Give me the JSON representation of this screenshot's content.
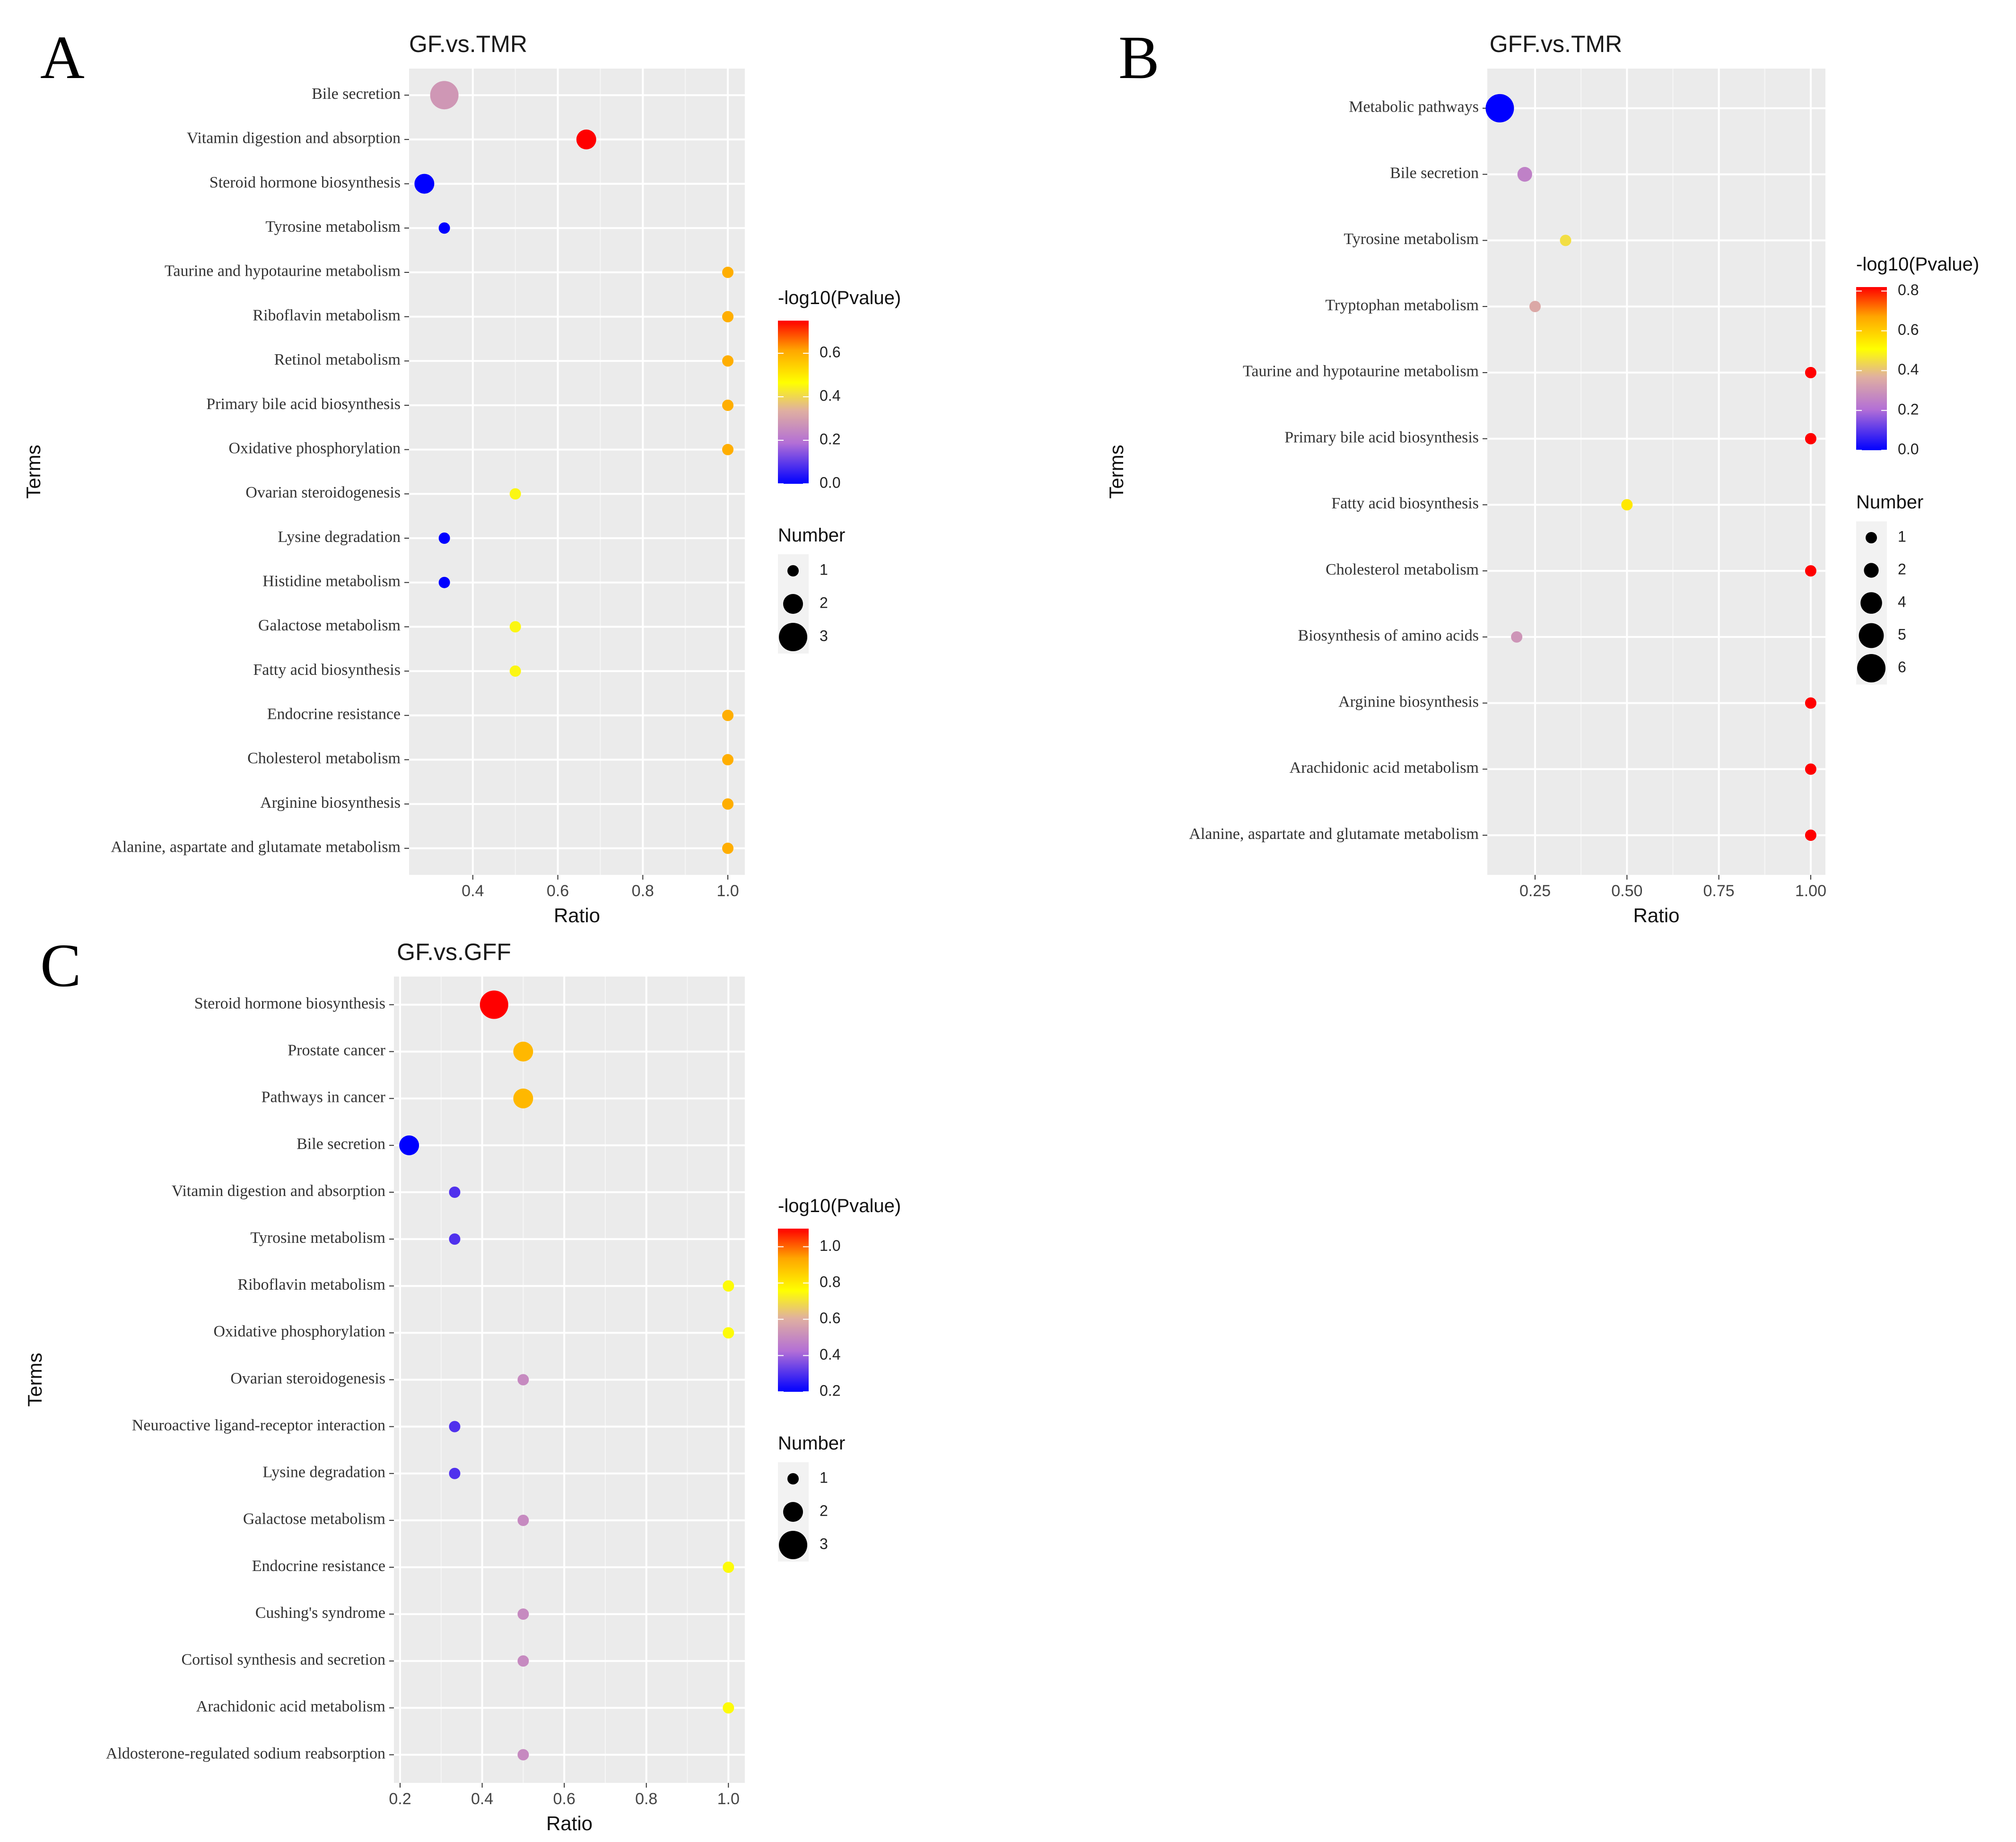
{
  "chart_data": [
    {
      "panel": "A",
      "type": "scatter",
      "title": "GF.vs.TMR",
      "xlabel": "Ratio",
      "ylabel": "Terms",
      "xlim": [
        0.25,
        1.04
      ],
      "xticks": [
        0.4,
        0.6,
        0.8,
        1.0
      ],
      "xtick_labels": [
        "0.4",
        "0.6",
        "0.8",
        "1.0"
      ],
      "color_legend": {
        "title": "-log10(Pvalue)",
        "range": [
          0.0,
          0.75
        ],
        "ticks": [
          0.0,
          0.2,
          0.4,
          0.6
        ],
        "tick_labels": [
          "0.0",
          "0.2",
          "0.4",
          "0.6"
        ]
      },
      "size_legend": {
        "title": "Number",
        "values": [
          1,
          2,
          3
        ],
        "labels": [
          "1",
          "2",
          "3"
        ]
      },
      "points": [
        {
          "term": "Bile secretion",
          "ratio": 0.333,
          "neg_log10_p": 0.28,
          "number": 3
        },
        {
          "term": "Vitamin digestion and absorption",
          "ratio": 0.667,
          "neg_log10_p": 0.75,
          "number": 2
        },
        {
          "term": "Steroid hormone biosynthesis",
          "ratio": 0.286,
          "neg_log10_p": 0.0,
          "number": 2
        },
        {
          "term": "Tyrosine metabolism",
          "ratio": 0.333,
          "neg_log10_p": 0.0,
          "number": 1
        },
        {
          "term": "Taurine and hypotaurine metabolism",
          "ratio": 1.0,
          "neg_log10_p": 0.6,
          "number": 1
        },
        {
          "term": "Riboflavin metabolism",
          "ratio": 1.0,
          "neg_log10_p": 0.6,
          "number": 1
        },
        {
          "term": "Retinol metabolism",
          "ratio": 1.0,
          "neg_log10_p": 0.6,
          "number": 1
        },
        {
          "term": "Primary bile acid biosynthesis",
          "ratio": 1.0,
          "neg_log10_p": 0.6,
          "number": 1
        },
        {
          "term": "Oxidative phosphorylation",
          "ratio": 1.0,
          "neg_log10_p": 0.6,
          "number": 1
        },
        {
          "term": "Ovarian steroidogenesis",
          "ratio": 0.5,
          "neg_log10_p": 0.45,
          "number": 1
        },
        {
          "term": "Lysine degradation",
          "ratio": 0.333,
          "neg_log10_p": 0.0,
          "number": 1
        },
        {
          "term": "Histidine metabolism",
          "ratio": 0.333,
          "neg_log10_p": 0.0,
          "number": 1
        },
        {
          "term": "Galactose metabolism",
          "ratio": 0.5,
          "neg_log10_p": 0.45,
          "number": 1
        },
        {
          "term": "Fatty acid biosynthesis",
          "ratio": 0.5,
          "neg_log10_p": 0.45,
          "number": 1
        },
        {
          "term": "Endocrine resistance",
          "ratio": 1.0,
          "neg_log10_p": 0.6,
          "number": 1
        },
        {
          "term": "Cholesterol metabolism",
          "ratio": 1.0,
          "neg_log10_p": 0.6,
          "number": 1
        },
        {
          "term": "Arginine biosynthesis",
          "ratio": 1.0,
          "neg_log10_p": 0.6,
          "number": 1
        },
        {
          "term": "Alanine, aspartate and glutamate metabolism",
          "ratio": 1.0,
          "neg_log10_p": 0.6,
          "number": 1
        }
      ]
    },
    {
      "panel": "B",
      "type": "scatter",
      "title": "GFF.vs.TMR",
      "xlabel": "Ratio",
      "ylabel": "Terms",
      "xlim": [
        0.12,
        1.04
      ],
      "xticks": [
        0.25,
        0.5,
        0.75,
        1.0
      ],
      "xtick_labels": [
        "0.25",
        "0.50",
        "0.75",
        "1.00"
      ],
      "color_legend": {
        "title": "-log10(Pvalue)",
        "range": [
          0.0,
          0.82
        ],
        "ticks": [
          0.0,
          0.2,
          0.4,
          0.6,
          0.8
        ],
        "tick_labels": [
          "0.0",
          "0.2",
          "0.4",
          "0.6",
          "0.8"
        ]
      },
      "size_legend": {
        "title": "Number",
        "values": [
          1,
          2,
          4,
          5,
          6
        ],
        "labels": [
          "1",
          "2",
          "4",
          "5",
          "6"
        ]
      },
      "points": [
        {
          "term": "Metabolic pathways",
          "ratio": 0.154,
          "neg_log10_p": 0.0,
          "number": 6
        },
        {
          "term": "Bile secretion",
          "ratio": 0.222,
          "neg_log10_p": 0.25,
          "number": 2
        },
        {
          "term": "Tyrosine metabolism",
          "ratio": 0.333,
          "neg_log10_p": 0.45,
          "number": 1
        },
        {
          "term": "Tryptophan metabolism",
          "ratio": 0.25,
          "neg_log10_p": 0.35,
          "number": 1
        },
        {
          "term": "Taurine and hypotaurine metabolism",
          "ratio": 1.0,
          "neg_log10_p": 0.82,
          "number": 1
        },
        {
          "term": "Primary bile acid biosynthesis",
          "ratio": 1.0,
          "neg_log10_p": 0.82,
          "number": 1
        },
        {
          "term": "Fatty acid biosynthesis",
          "ratio": 0.5,
          "neg_log10_p": 0.55,
          "number": 1
        },
        {
          "term": "Cholesterol metabolism",
          "ratio": 1.0,
          "neg_log10_p": 0.82,
          "number": 1
        },
        {
          "term": "Biosynthesis of amino acids",
          "ratio": 0.2,
          "neg_log10_p": 0.3,
          "number": 1
        },
        {
          "term": "Arginine biosynthesis",
          "ratio": 1.0,
          "neg_log10_p": 0.82,
          "number": 1
        },
        {
          "term": "Arachidonic acid metabolism",
          "ratio": 1.0,
          "neg_log10_p": 0.82,
          "number": 1
        },
        {
          "term": "Alanine, aspartate and glutamate metabolism",
          "ratio": 1.0,
          "neg_log10_p": 0.82,
          "number": 1
        }
      ]
    },
    {
      "panel": "C",
      "type": "scatter",
      "title": "GF.vs.GFF",
      "xlabel": "Ratio",
      "ylabel": "Terms",
      "xlim": [
        0.185,
        1.04
      ],
      "xticks": [
        0.2,
        0.4,
        0.6,
        0.8,
        1.0
      ],
      "xtick_labels": [
        "0.2",
        "0.4",
        "0.6",
        "0.8",
        "1.0"
      ],
      "color_legend": {
        "title": "-log10(Pvalue)",
        "range": [
          0.2,
          1.1
        ],
        "ticks": [
          0.2,
          0.4,
          0.6,
          0.8,
          1.0
        ],
        "tick_labels": [
          "0.2",
          "0.4",
          "0.6",
          "0.8",
          "1.0"
        ]
      },
      "size_legend": {
        "title": "Number",
        "values": [
          1,
          2,
          3
        ],
        "labels": [
          "1",
          "2",
          "3"
        ]
      },
      "points": [
        {
          "term": "Steroid hormone biosynthesis",
          "ratio": 0.429,
          "neg_log10_p": 1.1,
          "number": 3
        },
        {
          "term": "Prostate cancer",
          "ratio": 0.5,
          "neg_log10_p": 0.9,
          "number": 2
        },
        {
          "term": "Pathways in cancer",
          "ratio": 0.5,
          "neg_log10_p": 0.9,
          "number": 2
        },
        {
          "term": "Bile secretion",
          "ratio": 0.222,
          "neg_log10_p": 0.2,
          "number": 2
        },
        {
          "term": "Vitamin digestion and absorption",
          "ratio": 0.333,
          "neg_log10_p": 0.3,
          "number": 1
        },
        {
          "term": "Tyrosine metabolism",
          "ratio": 0.333,
          "neg_log10_p": 0.3,
          "number": 1
        },
        {
          "term": "Riboflavin metabolism",
          "ratio": 1.0,
          "neg_log10_p": 0.75,
          "number": 1
        },
        {
          "term": "Oxidative phosphorylation",
          "ratio": 1.0,
          "neg_log10_p": 0.75,
          "number": 1
        },
        {
          "term": "Ovarian steroidogenesis",
          "ratio": 0.5,
          "neg_log10_p": 0.5,
          "number": 1
        },
        {
          "term": "Neuroactive ligand-receptor interaction",
          "ratio": 0.333,
          "neg_log10_p": 0.3,
          "number": 1
        },
        {
          "term": "Lysine degradation",
          "ratio": 0.333,
          "neg_log10_p": 0.3,
          "number": 1
        },
        {
          "term": "Galactose metabolism",
          "ratio": 0.5,
          "neg_log10_p": 0.5,
          "number": 1
        },
        {
          "term": "Endocrine resistance",
          "ratio": 1.0,
          "neg_log10_p": 0.75,
          "number": 1
        },
        {
          "term": "Cushing's syndrome",
          "ratio": 0.5,
          "neg_log10_p": 0.5,
          "number": 1
        },
        {
          "term": "Cortisol synthesis and secretion",
          "ratio": 0.5,
          "neg_log10_p": 0.5,
          "number": 1
        },
        {
          "term": "Arachidonic acid metabolism",
          "ratio": 1.0,
          "neg_log10_p": 0.75,
          "number": 1
        },
        {
          "term": "Aldosterone-regulated sodium reabsorption",
          "ratio": 0.5,
          "neg_log10_p": 0.5,
          "number": 1
        }
      ]
    }
  ]
}
